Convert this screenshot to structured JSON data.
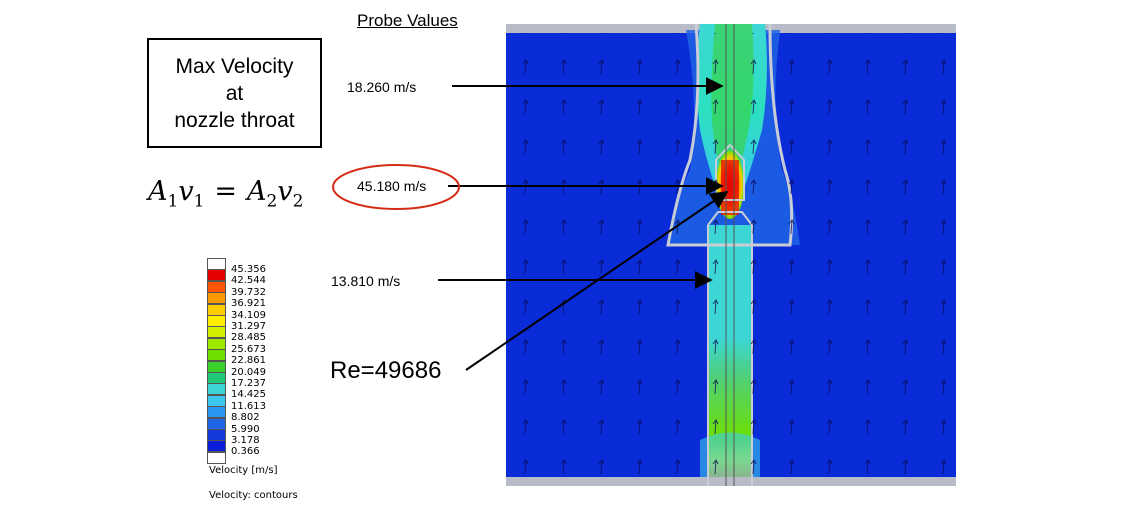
{
  "info_box": {
    "lines": [
      "Max Velocity",
      "at",
      "nozzle throat"
    ]
  },
  "equation": {
    "a1": "A",
    "s1": "1",
    "v1": "v",
    "t1": "1",
    "eq": "=",
    "a2": "A",
    "s2": "2",
    "v2": "v",
    "t2": "2"
  },
  "probe": {
    "title": "Probe Values",
    "values": [
      "18.260 m/s",
      "45.180 m/s",
      "13.810 m/s"
    ]
  },
  "reynolds": "Re=49686",
  "legend": {
    "values": [
      "45.356",
      "42.544",
      "39.732",
      "36.921",
      "34.109",
      "31.297",
      "28.485",
      "25.673",
      "22.861",
      "20.049",
      "17.237",
      "14.425",
      "11.613",
      "8.802",
      "5.990",
      "3.178",
      "0.366"
    ],
    "colors": [
      "#ffffff",
      "#e60000",
      "#ff5500",
      "#ff9900",
      "#ffcc00",
      "#ffee00",
      "#d4f000",
      "#a0e800",
      "#6ee000",
      "#3ad02a",
      "#22c87a",
      "#3cd7d4",
      "#3cc8ee",
      "#2a96f0",
      "#1e64e6",
      "#1438dc",
      "#0a1edc",
      "#ffffff"
    ],
    "unit": "Velocity [m/s]",
    "caption": "Velocity: contours"
  },
  "colors": {
    "background": "#0a2bd8",
    "highlight_ellipse": "#d42a16"
  }
}
